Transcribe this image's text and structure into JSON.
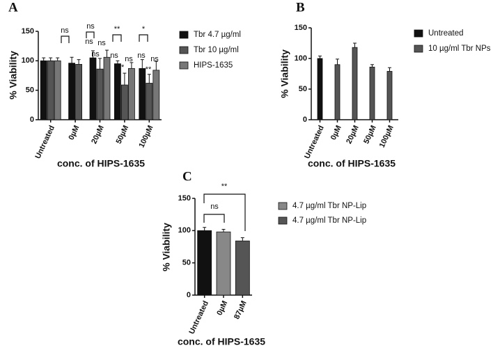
{
  "chart_data": [
    {
      "type": "bar",
      "panel_label": "A",
      "xlabel": "conc. of HIPS-1635",
      "ylabel": "% Viability",
      "categories": [
        "Untreated",
        "0µM",
        "20µM",
        "50µM",
        "100µM"
      ],
      "series": [
        {
          "name": "Tbr 4.7 µg/ml",
          "color": "#111111",
          "values": [
            100,
            96,
            105,
            95,
            87
          ],
          "errors": [
            5,
            10,
            12,
            5,
            15
          ]
        },
        {
          "name": "Tbr 10 µg/ml",
          "color": "#555555",
          "values": [
            100,
            94,
            86,
            59,
            62
          ],
          "errors": [
            5,
            8,
            18,
            20,
            15
          ]
        },
        {
          "name": "HIPS-1635",
          "color": "#777777",
          "values": [
            100,
            null,
            106,
            87,
            84
          ],
          "errors": [
            5,
            null,
            12,
            10,
            15
          ]
        }
      ],
      "ylim": [
        0,
        150
      ],
      "yticks": [
        0,
        50,
        100,
        150
      ],
      "annotations": [
        "ns",
        "ns",
        "ns",
        "ns",
        "ns",
        "**",
        "ns",
        "**",
        "ns",
        "*",
        "ns",
        "**",
        "ns"
      ]
    },
    {
      "type": "bar",
      "panel_label": "B",
      "xlabel": "conc. of HIPS-1635",
      "ylabel": "% Viability",
      "categories": [
        "Untreated",
        "0µM",
        "20µM",
        "50µM",
        "100µM"
      ],
      "series": [
        {
          "name": "Untreated",
          "color": "#111111",
          "values": [
            100,
            null,
            null,
            null,
            null
          ],
          "errors": [
            4,
            null,
            null,
            null,
            null
          ]
        },
        {
          "name": "10 µg/ml Tbr NPs",
          "color": "#555555",
          "values": [
            null,
            90,
            118,
            86,
            79
          ],
          "errors": [
            null,
            9,
            7,
            4,
            6
          ]
        }
      ],
      "ylim": [
        0,
        150
      ],
      "yticks": [
        0,
        50,
        100,
        150
      ]
    },
    {
      "type": "bar",
      "panel_label": "C",
      "xlabel": "conc. of HIPS-1635",
      "ylabel": "% Viability",
      "categories": [
        "Untreated",
        "0µM",
        "87µM"
      ],
      "series": [
        {
          "color": "#111111",
          "values": [
            100,
            null,
            null
          ],
          "errors": [
            5,
            null,
            null
          ]
        },
        {
          "name": "4.7 µg/ml Tbr NP-Lip",
          "color": "#888888",
          "values": [
            null,
            98,
            null
          ],
          "errors": [
            null,
            4,
            null
          ]
        },
        {
          "name": "4.7 µg/ml Tbr NP-Lip",
          "color": "#555555",
          "values": [
            null,
            null,
            84
          ],
          "errors": [
            null,
            null,
            5
          ]
        }
      ],
      "ylim": [
        0,
        150
      ],
      "yticks": [
        0,
        50,
        100,
        150
      ],
      "annotations": [
        "ns",
        "**"
      ]
    }
  ]
}
